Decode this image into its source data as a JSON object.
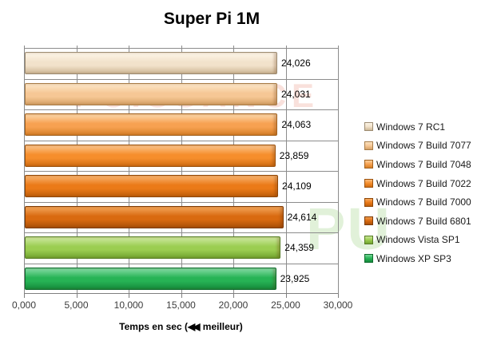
{
  "title": "Super Pi 1M",
  "watermark": {
    "text1": "PUISSANCE",
    "text2": "PU"
  },
  "xlabel_prefix": "Temps en sec (",
  "xlabel_arrows": "◀◀",
  "xlabel_suffix": " meilleur)",
  "chart_data": {
    "type": "bar",
    "orientation": "horizontal",
    "title": "Super Pi 1M",
    "xlabel": "Temps en sec (◀◀ meilleur)",
    "xlim": [
      0,
      30
    ],
    "x_tick_labels": [
      "0,000",
      "5,000",
      "10,000",
      "15,000",
      "20,000",
      "25,000",
      "30,000"
    ],
    "x_tick_values": [
      0,
      5,
      10,
      15,
      20,
      25,
      30
    ],
    "grid": true,
    "legend_position": "right",
    "value_note": "values are seconds, French decimal comma formatting",
    "series": [
      {
        "name": "Windows 7 RC1",
        "value": 24.026,
        "label": "24,026",
        "color": "#f2e2cb",
        "light": "#fbf3e4",
        "dark": "#cdb795",
        "border": "#9c8b72"
      },
      {
        "name": "Windows 7 Build 7077",
        "value": 24.031,
        "label": "24,031",
        "color": "#f6c795",
        "light": "#fbe2c0",
        "dark": "#d5a064",
        "border": "#a87d49"
      },
      {
        "name": "Windows 7 Build 7048",
        "value": 24.063,
        "label": "24,063",
        "color": "#f7a151",
        "light": "#fbcf9c",
        "dark": "#d67f26",
        "border": "#a2611e"
      },
      {
        "name": "Windows 7 Build 7022",
        "value": 23.859,
        "label": "23,859",
        "color": "#f68e2c",
        "light": "#fabc7d",
        "dark": "#d06c12",
        "border": "#9b520e"
      },
      {
        "name": "Windows 7 Build 7000",
        "value": 24.109,
        "label": "24,109",
        "color": "#eb7a18",
        "light": "#f6ab62",
        "dark": "#bf5e0a",
        "border": "#8e4708"
      },
      {
        "name": "Windows 7 Build 6801",
        "value": 24.614,
        "label": "24,614",
        "color": "#d96a10",
        "light": "#ef9c4e",
        "dark": "#a95008",
        "border": "#7d3b06"
      },
      {
        "name": "Windows Vista SP1",
        "value": 24.359,
        "label": "24,359",
        "color": "#9bcd51",
        "light": "#c6e494",
        "dark": "#71a430",
        "border": "#567d24"
      },
      {
        "name": "Windows XP SP3",
        "value": 23.925,
        "label": "23,925",
        "color": "#27b355",
        "light": "#76d598",
        "dark": "#158a3b",
        "border": "#0e6b2d"
      }
    ]
  }
}
